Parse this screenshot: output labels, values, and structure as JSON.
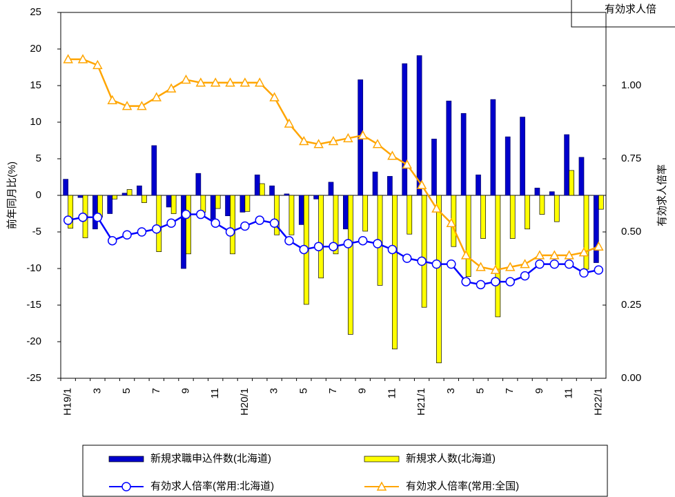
{
  "chart_data": {
    "type": "bar",
    "annotation": "有効求人倍",
    "ylabel": "前年同月比(%)",
    "y2label": "有効求人倍率",
    "categories": [
      "H19/1",
      null,
      "3",
      null,
      "5",
      null,
      "7",
      null,
      "9",
      null,
      "11",
      null,
      "H20/1",
      null,
      "3",
      null,
      "5",
      null,
      "7",
      null,
      "9",
      null,
      "11",
      null,
      "H21/1",
      null,
      "3",
      null,
      "5",
      null,
      "7",
      null,
      "9",
      null,
      "11",
      null,
      "H22/1"
    ],
    "ylim": [
      -25,
      25
    ],
    "yticks": [
      -25,
      -20,
      -15,
      -10,
      -5,
      0,
      5,
      10,
      15,
      20,
      25
    ],
    "y2lim": [
      0,
      1.25
    ],
    "y2ticks": [
      {
        "value": 0,
        "label": "0.00"
      },
      {
        "value": 0.25,
        "label": "0.25"
      },
      {
        "value": 0.5,
        "label": "0.50"
      },
      {
        "value": 0.75,
        "label": "0.75"
      },
      {
        "value": 1,
        "label": "1.00"
      }
    ],
    "series": [
      {
        "name": "新規求職申込件数(北海道)",
        "type": "bar",
        "color": "#0000cc",
        "values": [
          2.2,
          -0.3,
          -4.6,
          -2.5,
          0.3,
          1.3,
          6.8,
          -1.6,
          -10,
          3.0,
          -3.3,
          -2.8,
          -2.3,
          2.8,
          1.3,
          0.2,
          -4.0,
          -0.5,
          1.8,
          -4.6,
          15.8,
          3.2,
          2.6,
          18.0,
          19.1,
          7.7,
          12.9,
          11.2,
          2.8,
          13.1,
          8.0,
          10.7,
          1.0,
          0.5,
          8.3,
          5.2,
          -9.2
        ]
      },
      {
        "name": "新規求人数(北海道)",
        "type": "bar",
        "color": "#ffff00",
        "values": [
          -4.5,
          -5.8,
          -3.0,
          -0.5,
          0.8,
          -1.0,
          -7.7,
          -2.5,
          -8.0,
          -2.3,
          -1.8,
          -8.0,
          -2.2,
          1.6,
          -5.4,
          -5.4,
          -14.9,
          -11.3,
          -8.0,
          -19.0,
          -4.9,
          -12.3,
          -21.0,
          -5.3,
          -15.3,
          -22.9,
          -7.0,
          -11.1,
          -5.9,
          -16.6,
          -5.9,
          -4.6,
          -2.6,
          -3.6,
          3.4,
          -10.1,
          -1.9
        ]
      },
      {
        "name": "有効求人倍率(常用:北海道)",
        "type": "line",
        "marker": "circle",
        "axis": "y2",
        "color": "#0000ff",
        "values": [
          0.54,
          0.55,
          0.55,
          0.47,
          0.49,
          0.5,
          0.51,
          0.53,
          0.56,
          0.56,
          0.53,
          0.5,
          0.52,
          0.54,
          0.53,
          0.47,
          0.44,
          0.45,
          0.45,
          0.46,
          0.47,
          0.46,
          0.44,
          0.41,
          0.4,
          0.39,
          0.39,
          0.33,
          0.32,
          0.33,
          0.33,
          0.35,
          0.39,
          0.39,
          0.39,
          0.36,
          0.37
        ]
      },
      {
        "name": "有効求人倍率(常用:全国)",
        "type": "line",
        "marker": "triangle",
        "axis": "y2",
        "color": "#ffa500",
        "values": [
          1.09,
          1.09,
          1.07,
          0.95,
          0.93,
          0.93,
          0.96,
          0.99,
          1.02,
          1.01,
          1.01,
          1.01,
          1.01,
          1.01,
          0.96,
          0.87,
          0.81,
          0.8,
          0.81,
          0.82,
          0.83,
          0.8,
          0.76,
          0.73,
          0.66,
          0.58,
          0.53,
          0.42,
          0.38,
          0.37,
          0.38,
          0.39,
          0.42,
          0.42,
          0.42,
          0.43,
          0.45
        ]
      }
    ]
  }
}
